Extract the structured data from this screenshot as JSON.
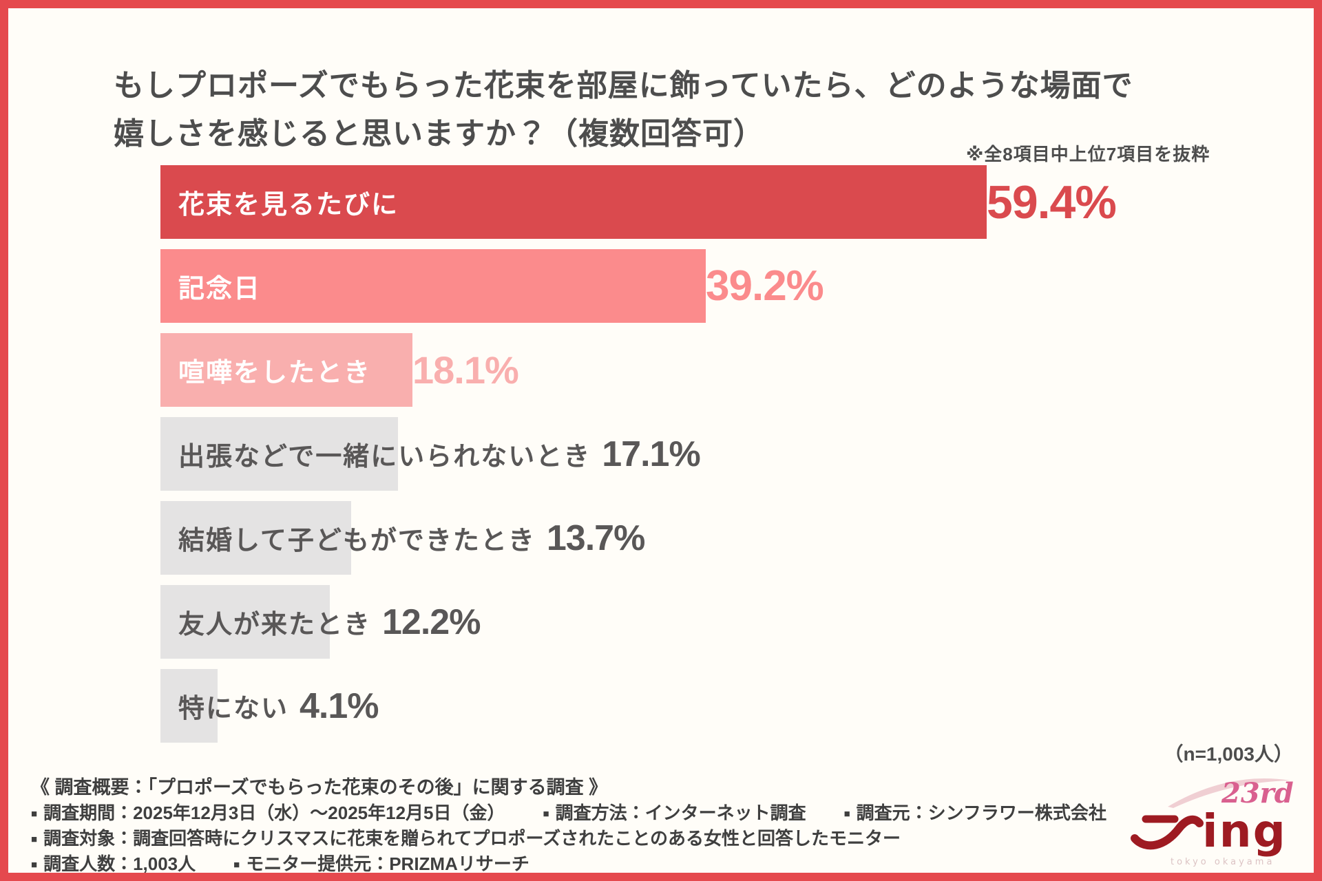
{
  "title": {
    "line1": "もしプロポーズでもらった花束を部屋に飾っていたら、どのような場面で",
    "line2": "嬉しさを感じると思いますか？（複数回答可）"
  },
  "note": "※全8項目中上位7項目を抜粋",
  "chart_data": {
    "type": "bar",
    "orientation": "horizontal",
    "title": "もしプロポーズでもらった花束を部屋に飾っていたら、どのような場面で嬉しさを感じると思いますか？（複数回答可）",
    "unit": "%",
    "axis_max": 59.4,
    "grid": false,
    "legend": "none",
    "categories": [
      "花束を見るたびに",
      "記念日",
      "喧嘩をしたとき",
      "出張などで一緒にいられないとき",
      "結婚して子どもができたとき",
      "友人が来たとき",
      "特にない"
    ],
    "values": [
      59.4,
      39.2,
      18.1,
      17.1,
      13.7,
      12.2,
      4.1
    ],
    "rows": [
      {
        "label": "花束を見るたびに",
        "value": 59.4,
        "value_label": "59.4%",
        "bar_color": "#DA4A4E",
        "label_color": "#FFFFFF",
        "value_color": "#DA4A4E"
      },
      {
        "label": "記念日",
        "value": 39.2,
        "value_label": "39.2%",
        "bar_color": "#FB8B8C",
        "label_color": "#FFFFFF",
        "value_color": "#FB8B8C"
      },
      {
        "label": "喧嘩をしたとき",
        "value": 18.1,
        "value_label": "18.1%",
        "bar_color": "#F9AFAE",
        "label_color": "#FFFFFF",
        "value_color": "#F9AFAE"
      },
      {
        "label": "出張などで一緒にいられないとき",
        "value": 17.1,
        "value_label": "17.1%",
        "bar_color": "#E4E3E3",
        "label_color": "#595757",
        "value_color": "#595757"
      },
      {
        "label": "結婚して子どもができたとき",
        "value": 13.7,
        "value_label": "13.7%",
        "bar_color": "#E4E3E3",
        "label_color": "#595757",
        "value_color": "#595757"
      },
      {
        "label": "友人が来たとき",
        "value": 12.2,
        "value_label": "12.2%",
        "bar_color": "#E4E3E3",
        "label_color": "#595757",
        "value_color": "#595757"
      },
      {
        "label": "特にない",
        "value": 4.1,
        "value_label": "4.1%",
        "bar_color": "#E4E3E3",
        "label_color": "#595757",
        "value_color": "#595757"
      }
    ]
  },
  "footer": {
    "n_label": "（n=1,003人）",
    "bullet": "■",
    "overview": "《 調査概要：「プロポーズでもらった花束のその後」に関する調査 》",
    "period": "調査期間：2025年12月3日（水）～2025年12月5日（金）",
    "method": "調査方法：インターネット調査",
    "source": "調査元：シンフラワー株式会社",
    "target": "調査対象：調査回答時にクリスマスに花束を贈られてプロポーズされたことのある女性と回答したモニター",
    "count": "調査人数：1,003人",
    "monitor": "モニター提供元：PRIZMAリサーチ"
  },
  "logo": {
    "year_badge": "23rd",
    "wordmark": "ing",
    "subtext": "tokyo okayama",
    "primary_color": "#9E1B22",
    "accent_color": "#D9608F"
  },
  "colors": {
    "frame_border": "#E5494E",
    "background": "#FFFDF8",
    "title_text": "#4D4D4D",
    "footer_text": "#3F3F3F"
  }
}
